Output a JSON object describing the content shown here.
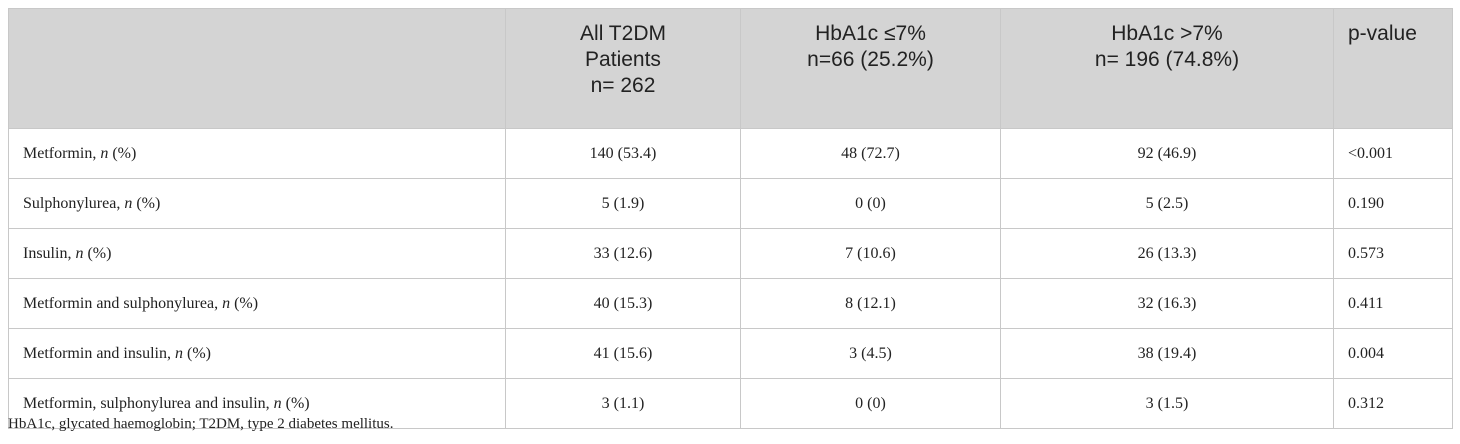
{
  "table": {
    "header": [
      [
        "All T2DM",
        "Patients",
        "n= 262"
      ],
      [
        "HbA1c ≤7%",
        "n=66 (25.2%)"
      ],
      [
        "HbA1c >7%",
        "n= 196 (74.8%)"
      ],
      [
        "p-value"
      ]
    ],
    "rows": [
      {
        "label": "Metformin,",
        "unit": "n",
        "suffix": "(%)",
        "cells": [
          "140 (53.4)",
          "48 (72.7)",
          "92 (46.9)",
          "<0.001"
        ]
      },
      {
        "label": "Sulphonylurea,",
        "unit": "n",
        "suffix": "(%)",
        "cells": [
          "5 (1.9)",
          "0 (0)",
          "5 (2.5)",
          "0.190"
        ]
      },
      {
        "label": "Insulin,",
        "unit": "n",
        "suffix": "(%)",
        "cells": [
          "33 (12.6)",
          "7 (10.6)",
          "26 (13.3)",
          "0.573"
        ]
      },
      {
        "label": "Metformin and sulphonylurea,",
        "unit": "n",
        "suffix": "(%)",
        "cells": [
          "40 (15.3)",
          "8 (12.1)",
          "32 (16.3)",
          "0.411"
        ]
      },
      {
        "label": "Metformin and insulin,",
        "unit": "n",
        "suffix": "(%)",
        "cells": [
          "41 (15.6)",
          "3 (4.5)",
          "38 (19.4)",
          "0.004"
        ]
      },
      {
        "label": "Metformin, sulphonylurea and insulin,",
        "unit": "n",
        "suffix": "(%)",
        "cells": [
          "3 (1.1)",
          "0 (0)",
          "3 (1.5)",
          "0.312"
        ]
      }
    ],
    "footnote": "HbA1c, glycated haemoglobin; T2DM, type 2 diabetes mellitus."
  }
}
